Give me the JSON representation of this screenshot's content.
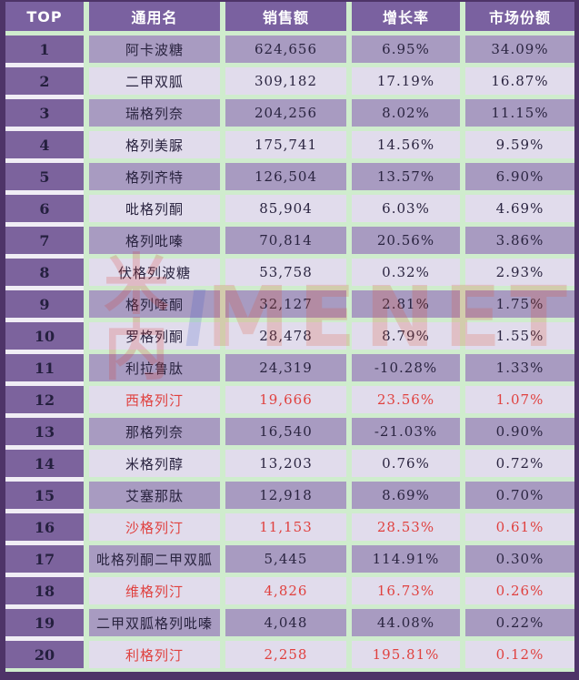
{
  "chart_data": {
    "type": "table",
    "columns": [
      "TOP",
      "通用名",
      "销售额",
      "增长率",
      "市场份额"
    ],
    "rows": [
      {
        "rank": "1",
        "generic_name": "阿卡波糖",
        "sales": "624,656",
        "growth_rate": "6.95%",
        "market_share": "34.09%",
        "highlighted": false
      },
      {
        "rank": "2",
        "generic_name": "二甲双胍",
        "sales": "309,182",
        "growth_rate": "17.19%",
        "market_share": "16.87%",
        "highlighted": false
      },
      {
        "rank": "3",
        "generic_name": "瑞格列奈",
        "sales": "204,256",
        "growth_rate": "8.02%",
        "market_share": "11.15%",
        "highlighted": false
      },
      {
        "rank": "4",
        "generic_name": "格列美脲",
        "sales": "175,741",
        "growth_rate": "14.56%",
        "market_share": "9.59%",
        "highlighted": false
      },
      {
        "rank": "5",
        "generic_name": "格列齐特",
        "sales": "126,504",
        "growth_rate": "13.57%",
        "market_share": "6.90%",
        "highlighted": false
      },
      {
        "rank": "6",
        "generic_name": "吡格列酮",
        "sales": "85,904",
        "growth_rate": "6.03%",
        "market_share": "4.69%",
        "highlighted": false
      },
      {
        "rank": "7",
        "generic_name": "格列吡嗪",
        "sales": "70,814",
        "growth_rate": "20.56%",
        "market_share": "3.86%",
        "highlighted": false
      },
      {
        "rank": "8",
        "generic_name": "伏格列波糖",
        "sales": "53,758",
        "growth_rate": "0.32%",
        "market_share": "2.93%",
        "highlighted": false
      },
      {
        "rank": "9",
        "generic_name": "格列喹酮",
        "sales": "32,127",
        "growth_rate": "2.81%",
        "market_share": "1.75%",
        "highlighted": false
      },
      {
        "rank": "10",
        "generic_name": "罗格列酮",
        "sales": "28,478",
        "growth_rate": "8.79%",
        "market_share": "1.55%",
        "highlighted": false
      },
      {
        "rank": "11",
        "generic_name": "利拉鲁肽",
        "sales": "24,319",
        "growth_rate": "-10.28%",
        "market_share": "1.33%",
        "highlighted": false
      },
      {
        "rank": "12",
        "generic_name": "西格列汀",
        "sales": "19,666",
        "growth_rate": "23.56%",
        "market_share": "1.07%",
        "highlighted": true
      },
      {
        "rank": "13",
        "generic_name": "那格列奈",
        "sales": "16,540",
        "growth_rate": "-21.03%",
        "market_share": "0.90%",
        "highlighted": false
      },
      {
        "rank": "14",
        "generic_name": "米格列醇",
        "sales": "13,203",
        "growth_rate": "0.76%",
        "market_share": "0.72%",
        "highlighted": false
      },
      {
        "rank": "15",
        "generic_name": "艾塞那肽",
        "sales": "12,918",
        "growth_rate": "8.69%",
        "market_share": "0.70%",
        "highlighted": false
      },
      {
        "rank": "16",
        "generic_name": "沙格列汀",
        "sales": "11,153",
        "growth_rate": "28.53%",
        "market_share": "0.61%",
        "highlighted": true
      },
      {
        "rank": "17",
        "generic_name": "吡格列酮二甲双胍",
        "sales": "5,445",
        "growth_rate": "114.91%",
        "market_share": "0.30%",
        "highlighted": false
      },
      {
        "rank": "18",
        "generic_name": "维格列汀",
        "sales": "4,826",
        "growth_rate": "16.73%",
        "market_share": "0.26%",
        "highlighted": true
      },
      {
        "rank": "19",
        "generic_name": "二甲双胍格列吡嗪",
        "sales": "4,048",
        "growth_rate": "44.08%",
        "market_share": "0.22%",
        "highlighted": false
      },
      {
        "rank": "20",
        "generic_name": "利格列汀",
        "sales": "2,258",
        "growth_rate": "195.81%",
        "market_share": "0.12%",
        "highlighted": true
      }
    ]
  },
  "watermark": {
    "cn_text": "米内",
    "en_text": "MENET"
  },
  "colors": {
    "header_bg": "#7a61a0",
    "rank_column_bg": "#7c639d",
    "row_odd_bg": "#a89bc1",
    "row_even_bg": "#e1dcec",
    "separator_green": "#cfeccd",
    "rank_separator_white": "#f0edf5",
    "frame_purple": "#4e3468",
    "header_text": "#ffffff",
    "body_text": "#2a2440",
    "highlight_red": "#e0413f",
    "watermark_red": "#e0502e",
    "watermark_blue": "#3c5ac8"
  }
}
